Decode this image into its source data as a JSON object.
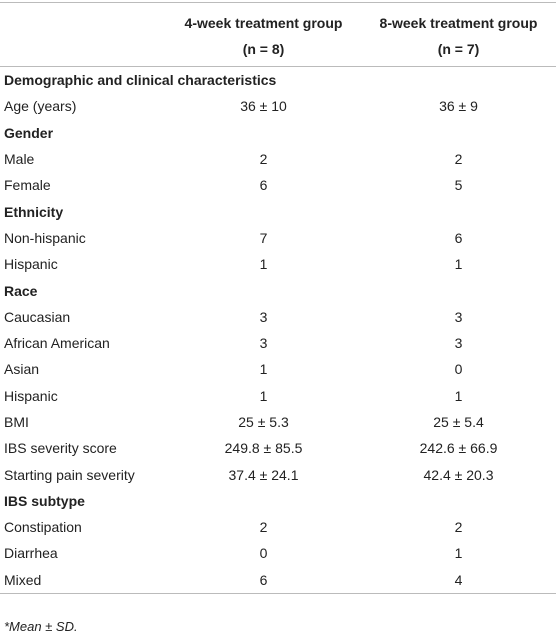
{
  "table": {
    "header": [
      [
        "4-week treatment group",
        "(n = 8)"
      ],
      [
        "8-week treatment group",
        "(n = 7)"
      ]
    ],
    "rows": [
      [
        "Demographic and clinical characteristics"
      ],
      [
        "Age (years)",
        "36 ± 10",
        "36 ± 9"
      ],
      [
        "Gender"
      ],
      [
        "Male",
        "2",
        "2"
      ],
      [
        "Female",
        "6",
        "5"
      ],
      [
        "Ethnicity"
      ],
      [
        "Non-hispanic",
        "7",
        "6"
      ],
      [
        "Hispanic",
        "1",
        "1"
      ],
      [
        "Race"
      ],
      [
        "Caucasian",
        "3",
        "3"
      ],
      [
        "African American",
        "3",
        "3"
      ],
      [
        "Asian",
        "1",
        "0"
      ],
      [
        "Hispanic",
        "1",
        "1"
      ],
      [
        "BMI",
        "25 ± 5.3",
        "25 ± 5.4"
      ],
      [
        "IBS severity score",
        "249.8 ± 85.5",
        "242.6 ± 66.9"
      ],
      [
        "Starting pain severity",
        "37.4 ± 24.1",
        "42.4 ± 20.3"
      ],
      [
        "IBS subtype"
      ],
      [
        "Constipation",
        "2",
        "2"
      ],
      [
        "Diarrhea",
        "0",
        "1"
      ],
      [
        "Mixed",
        "6",
        "4"
      ]
    ],
    "footnote": "*Mean ± SD."
  }
}
